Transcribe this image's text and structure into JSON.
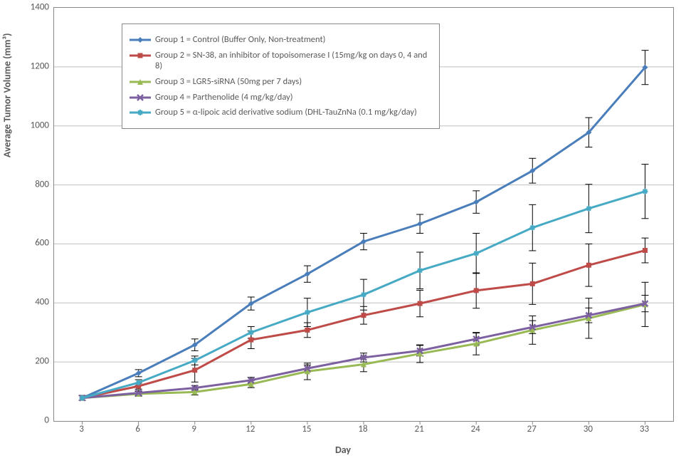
{
  "chart": {
    "type": "line",
    "y_axis_label": "Average Tumor Volume (mm³)",
    "x_axis_label": "Day",
    "background_color": "#ffffff",
    "grid_color": "#c0c0c0",
    "axis_border_color": "#888888",
    "label_fontsize": 14,
    "tick_fontsize": 13,
    "legend_fontsize": 12.5,
    "x_categories": [
      3,
      6,
      9,
      12,
      15,
      18,
      21,
      24,
      27,
      30,
      33
    ],
    "y_ticks": [
      0,
      200,
      400,
      600,
      800,
      1000,
      1200,
      1400
    ],
    "y_min": 0,
    "y_max": 1400,
    "line_width": 3,
    "series": [
      {
        "name": "group1",
        "label": "Group 1 = Control (Buffer Only, Non-treatment)",
        "color": "#4a7ebb",
        "marker": "diamond",
        "marker_size": 8,
        "values": [
          78,
          162,
          258,
          398,
          498,
          608,
          668,
          742,
          848,
          978,
          1198
        ],
        "errors": [
          8,
          12,
          20,
          22,
          28,
          28,
          32,
          38,
          42,
          50,
          58
        ]
      },
      {
        "name": "group2",
        "label": "Group 2 = SN-38, an inhibitor of topoisomerase I (15mg/kg on days 0, 4 and 8)",
        "color": "#be4b48",
        "marker": "square",
        "marker_size": 7,
        "values": [
          78,
          118,
          172,
          275,
          308,
          358,
          398,
          442,
          465,
          528,
          578
        ],
        "errors": [
          8,
          10,
          40,
          30,
          25,
          30,
          45,
          60,
          70,
          72,
          42
        ]
      },
      {
        "name": "group3",
        "label": "Group 3 = LGR5-siRNA (50mg per 7 days)",
        "color": "#98b954",
        "marker": "triangle",
        "marker_size": 8,
        "values": [
          78,
          92,
          98,
          125,
          168,
          192,
          228,
          262,
          308,
          348,
          395
        ],
        "errors": [
          8,
          8,
          10,
          12,
          28,
          25,
          30,
          38,
          48,
          68,
          75
        ]
      },
      {
        "name": "group4",
        "label": "Group 4 = Parthenolide (4 mg/kg/day)",
        "color": "#7d60a0",
        "marker": "x",
        "marker_size": 8,
        "values": [
          78,
          95,
          112,
          138,
          178,
          215,
          238,
          278,
          318,
          358,
          398
        ],
        "errors": [
          8,
          8,
          8,
          10,
          12,
          15,
          18,
          20,
          22,
          25,
          28
        ]
      },
      {
        "name": "group5",
        "label": "Group 5 = α-lipoic acid derivative sodium (DHL-TauZnNa (0.1 mg/kg/day)",
        "color": "#46aac5",
        "marker": "asterisk",
        "marker_size": 8,
        "values": [
          78,
          130,
          205,
          300,
          368,
          428,
          510,
          568,
          655,
          720,
          778
        ],
        "errors": [
          8,
          10,
          15,
          20,
          48,
          52,
          62,
          68,
          78,
          82,
          92
        ]
      }
    ]
  }
}
